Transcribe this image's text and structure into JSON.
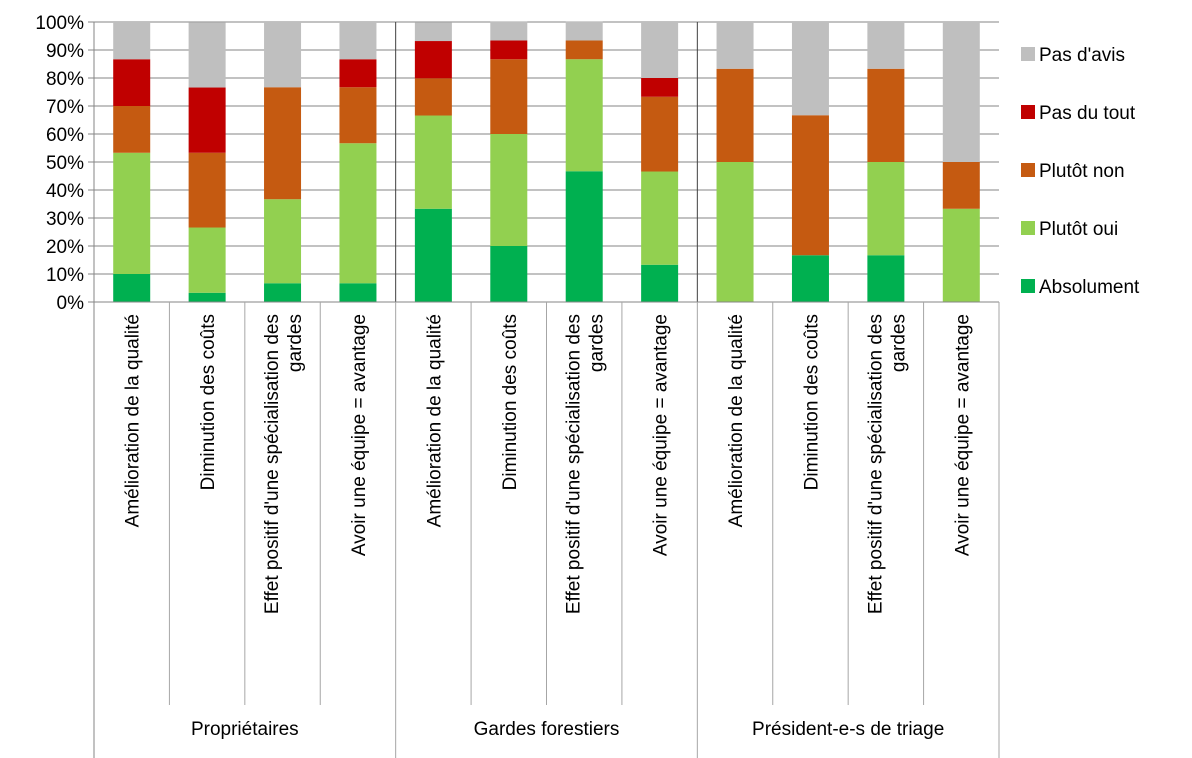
{
  "chart_data": {
    "type": "bar",
    "stacked": true,
    "title": "",
    "xlabel": "",
    "ylabel": "",
    "ylim": [
      0,
      100
    ],
    "y_tick_labels": [
      "0%",
      "10%",
      "20%",
      "30%",
      "40%",
      "50%",
      "60%",
      "70%",
      "80%",
      "90%",
      "100%"
    ],
    "grid": true,
    "legend_position": "right",
    "groups": [
      {
        "label": "Propriétaires",
        "categories": [
          0,
          1,
          2,
          3
        ]
      },
      {
        "label": "Gardes forestiers",
        "categories": [
          4,
          5,
          6,
          7
        ]
      },
      {
        "label": "Président-e-s de triage",
        "categories": [
          8,
          9,
          10,
          11
        ]
      }
    ],
    "categories": [
      [
        "Amélioration de la qualité"
      ],
      [
        "Diminution des coûts"
      ],
      [
        "Effet positif d'une spécialisation des",
        "gardes"
      ],
      [
        "Avoir une équipe = avantage"
      ],
      [
        "Amélioration de la qualité"
      ],
      [
        "Diminution des coûts"
      ],
      [
        "Effet positif d'une spécialisation des",
        "gardes"
      ],
      [
        "Avoir une équipe = avantage"
      ],
      [
        "Amélioration de la qualité"
      ],
      [
        "Diminution des coûts"
      ],
      [
        "Effet positif d'une spécialisation des",
        "gardes"
      ],
      [
        "Avoir une équipe = avantage"
      ]
    ],
    "series": [
      {
        "name": "Absolument",
        "color": "#00b050",
        "values": [
          10,
          3.3,
          6.7,
          6.7,
          33.3,
          20,
          46.7,
          13.3,
          0,
          16.7,
          16.7,
          0
        ]
      },
      {
        "name": "Plutôt oui",
        "color": "#92d050",
        "values": [
          43.3,
          23.3,
          30,
          50,
          33.3,
          40,
          40,
          33.3,
          50,
          0,
          33.3,
          33.3
        ]
      },
      {
        "name": "Plutôt non",
        "color": "#c55a11",
        "values": [
          16.7,
          26.7,
          40,
          20,
          13.3,
          26.7,
          6.7,
          26.7,
          33.3,
          50,
          33.3,
          16.7
        ]
      },
      {
        "name": "Pas du tout",
        "color": "#c00000",
        "values": [
          16.7,
          23.3,
          0,
          10,
          13.3,
          6.7,
          0,
          6.7,
          0,
          0,
          0,
          0
        ]
      },
      {
        "name": "Pas d'avis",
        "color": "#bfbfbf",
        "values": [
          13.3,
          23.3,
          23.3,
          13.3,
          6.7,
          6.7,
          6.7,
          20,
          16.7,
          33.3,
          16.7,
          50
        ]
      }
    ]
  }
}
